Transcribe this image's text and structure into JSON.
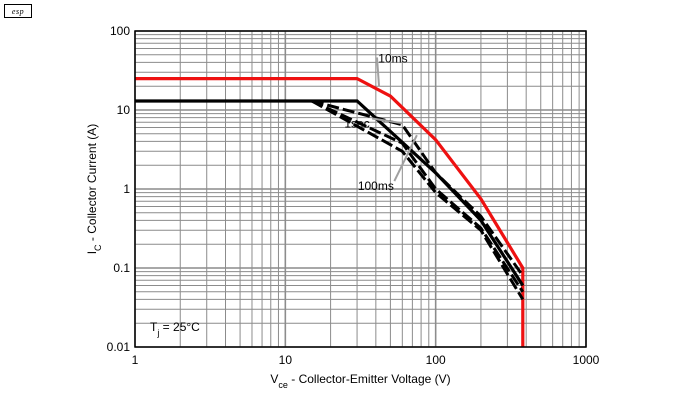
{
  "logo": {
    "text": "esp"
  },
  "chart_data": {
    "type": "line",
    "title": "",
    "xlabel": {
      "main": "V",
      "sub": "ce",
      "rest": " - Collector-Emitter Voltage (V)"
    },
    "ylabel": {
      "main": "I",
      "sub": "C",
      "rest": " - Collector Current (A)"
    },
    "x_scale": "log",
    "y_scale": "log",
    "xlim": [
      1,
      1000
    ],
    "ylim": [
      0.01,
      100
    ],
    "x_ticks": [
      "1",
      "10",
      "100",
      "1000"
    ],
    "y_ticks": [
      "0.01",
      "0.1",
      "1",
      "10",
      "100"
    ],
    "grid": true,
    "temperature_note": {
      "main": "T",
      "sub": "j",
      "rest": " = 25°C"
    },
    "colors": {
      "red_series": "#ee1111",
      "black_series": "#000000",
      "grid": "#8c8c8c",
      "leader": "#a0a0a0"
    },
    "series": [
      {
        "name": "10ms",
        "color": "#ee1111",
        "style": "solid",
        "x": [
          1,
          30,
          50,
          100,
          200,
          380,
          380
        ],
        "y": [
          25,
          25,
          15,
          4.2,
          0.75,
          0.1,
          0.01
        ]
      },
      {
        "name": "",
        "color": "#000000",
        "style": "solid",
        "x": [
          1,
          30,
          100,
          200,
          380
        ],
        "y": [
          13,
          13,
          1.6,
          0.4,
          0.06
        ]
      },
      {
        "name": "",
        "color": "#000000",
        "style": "dashed",
        "x": [
          15,
          60,
          100,
          200,
          380
        ],
        "y": [
          13,
          6.5,
          1.6,
          0.45,
          0.08
        ]
      },
      {
        "name": "",
        "color": "#000000",
        "style": "dashed",
        "x": [
          15,
          60,
          100,
          200,
          380
        ],
        "y": [
          13,
          3.8,
          1,
          0.32,
          0.05
        ]
      },
      {
        "name": "",
        "color": "#000000",
        "style": "dashed",
        "x": [
          15,
          60,
          100,
          200,
          380
        ],
        "y": [
          13,
          3,
          0.9,
          0.3,
          0.04
        ]
      }
    ],
    "annotations": [
      {
        "text": "10ms",
        "label_x": 52,
        "label_y": 40,
        "target_x": 42,
        "target_y": 20
      },
      {
        "text": "1sec",
        "label_x": 30,
        "label_y": 6.0,
        "target_x": 60,
        "target_y": 6.8
      },
      {
        "text": "100ms",
        "label_x": 40,
        "label_y": 0.97,
        "target_x": 75,
        "target_y": 4.8
      }
    ]
  }
}
